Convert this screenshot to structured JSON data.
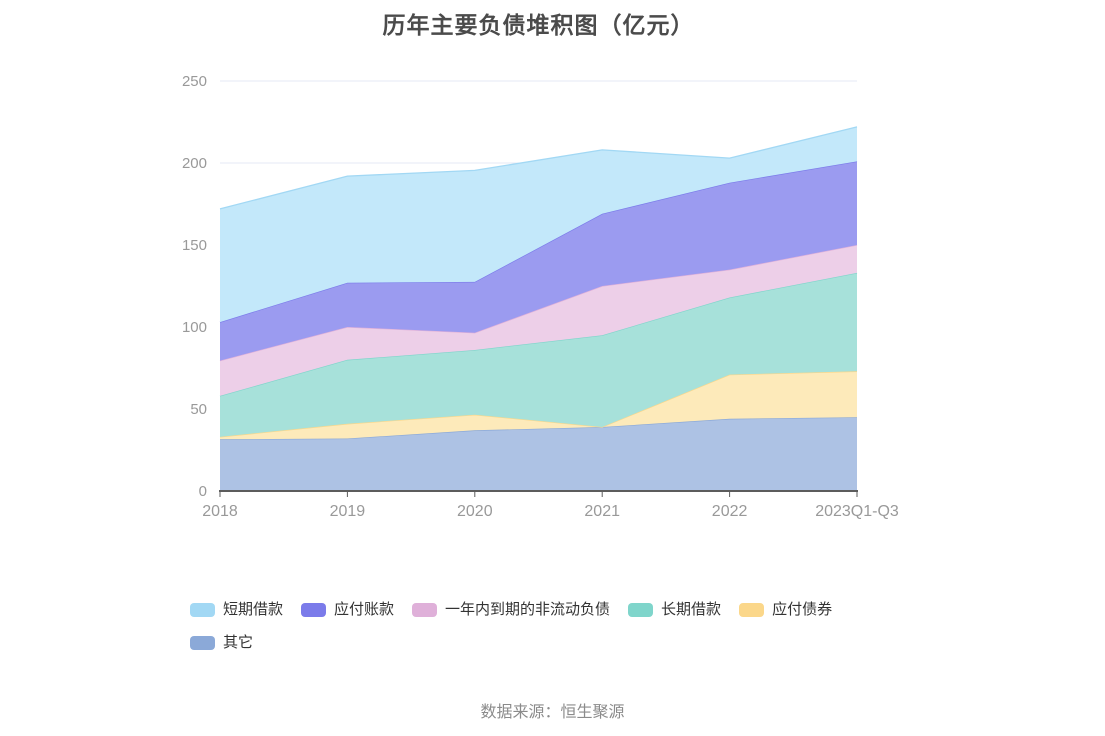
{
  "title": "历年主要负债堆积图（亿元）",
  "source": "数据来源：恒生聚源",
  "colors": {
    "title_text": "#4b4b4b",
    "axis_label": "#999999",
    "axis_line": "#5c5c5c",
    "grid_line": "#e6e9f4",
    "legend_text": "#333333",
    "source_text": "#8b8b8b"
  },
  "chart_data": {
    "type": "area",
    "stacked": true,
    "title": "历年主要负债堆积图（亿元）",
    "xlabel": "",
    "ylabel": "",
    "ylim": [
      0,
      250
    ],
    "y_ticks": [
      0,
      50,
      100,
      150,
      200,
      250
    ],
    "grid": true,
    "legend_position": "bottom",
    "categories": [
      "2018",
      "2019",
      "2020",
      "2021",
      "2022",
      "2023Q1-Q3"
    ],
    "series": [
      {
        "name": "短期借款",
        "color": "#a2d8f4",
        "area_color": "#c3e8fa",
        "values": [
          69,
          65,
          68,
          39,
          15,
          21
        ]
      },
      {
        "name": "应付账款",
        "color": "#7b7bea",
        "area_color": "#9b9bf0",
        "values": [
          23.5,
          27,
          31,
          44,
          53,
          51
        ]
      },
      {
        "name": "一年内到期的非流动负债",
        "color": "#dfb0d9",
        "area_color": "#edcfe8",
        "values": [
          21.5,
          20,
          10.5,
          30,
          17,
          17
        ]
      },
      {
        "name": "长期借款",
        "color": "#7fd5cb",
        "area_color": "#a7e1da",
        "values": [
          25,
          39,
          39.5,
          56,
          47,
          60
        ]
      },
      {
        "name": "应付债券",
        "color": "#fbd78a",
        "area_color": "#fdeaba",
        "values": [
          1.5,
          9,
          9.5,
          0,
          27,
          28
        ]
      },
      {
        "name": "其它",
        "color": "#8ba9d8",
        "area_color": "#adc2e4",
        "values": [
          31.5,
          32,
          37,
          39,
          44,
          45
        ]
      }
    ],
    "stack_totals": [
      172,
      192,
      195.5,
      208,
      203,
      222
    ]
  }
}
